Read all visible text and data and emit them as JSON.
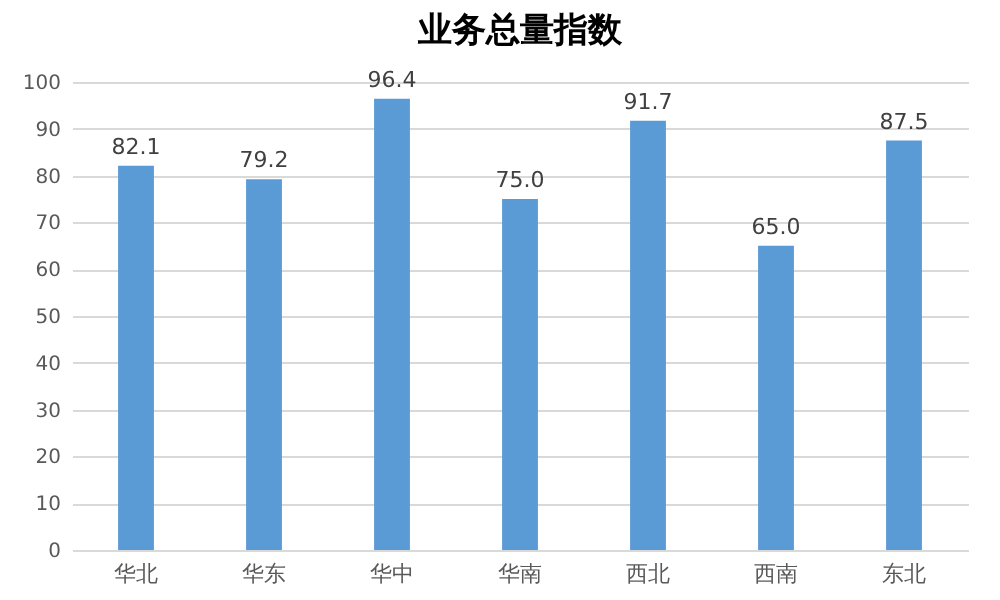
{
  "chart_data": {
    "type": "bar",
    "title": "业务总量指数",
    "categories": [
      "华北",
      "华东",
      "华中",
      "华南",
      "西北",
      "西南",
      "东北"
    ],
    "values": [
      82.1,
      79.2,
      96.4,
      75.0,
      91.7,
      65.0,
      87.5
    ],
    "value_labels": [
      "82.1",
      "79.2",
      "96.4",
      "75.0",
      "91.7",
      "65.0",
      "87.5"
    ],
    "color": "#5b9bd5",
    "ylim": [
      0,
      100
    ],
    "yticks": [
      0,
      10,
      20,
      30,
      40,
      50,
      60,
      70,
      80,
      90,
      100
    ],
    "grid": "y"
  }
}
